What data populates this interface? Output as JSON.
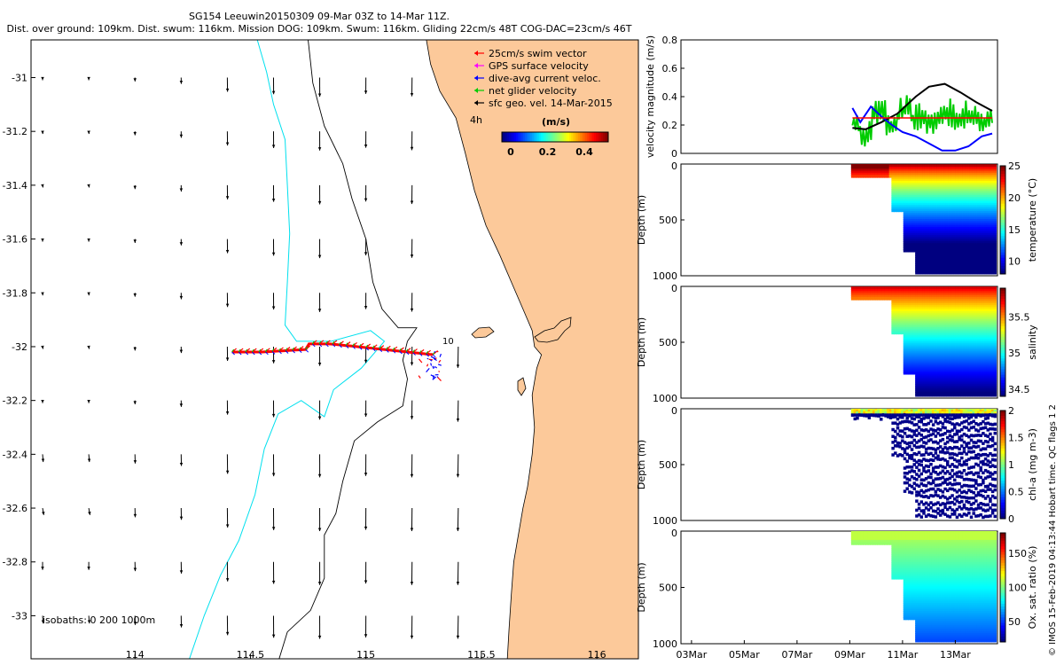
{
  "title": {
    "line1": "SG154 Leeuwin20150309 09-Mar 03Z to 14-Mar 11Z.",
    "line2": "Dist. over ground: 109km. Dist. swum: 116km. Mission DOG: 109km. Swum: 116km. Gliding 22cm/s 48T COG-DAC=23cm/s 46T"
  },
  "map": {
    "xticks": [
      "114",
      "114.5",
      "115",
      "115.5",
      "116"
    ],
    "yticks": [
      "-31",
      "-31.2",
      "-31.4",
      "-31.6",
      "-31.8",
      "-32",
      "-32.2",
      "-32.4",
      "-32.6",
      "-32.8",
      "-33"
    ],
    "legend": [
      {
        "label": "25cm/s swim vector",
        "color": "#ff0000"
      },
      {
        "label": "GPS surface velocity",
        "color": "#ff00ff"
      },
      {
        "label": "dive-avg current veloc.",
        "color": "#0000ff"
      },
      {
        "label": "net glider velocity",
        "color": "#00cc00"
      },
      {
        "label": "sfc geo. vel. 14-Mar-2015",
        "color": "#000000"
      }
    ],
    "colorbar": {
      "label": "(m/s)",
      "ticks": [
        "0",
        "0.2",
        "0.4"
      ]
    },
    "time_label": "4h",
    "dive_label": "10",
    "isobaths_label": "isobaths: 0   200  1000m",
    "land_color": "#fcc99a",
    "isobath_colors": {
      "coast": "#000000",
      "200m": "#000000",
      "1000m": "#00e0ee"
    }
  },
  "chart_data": [
    {
      "type": "line",
      "title": "",
      "ylabel": "velocity magnitude (m/s)",
      "ylim": [
        0,
        0.8
      ],
      "yticks": [
        "0",
        "0.2",
        "0.4",
        "0.6",
        "0.8"
      ],
      "x_dates": [
        "03Mar",
        "05Mar",
        "07Mar",
        "09Mar",
        "11Mar",
        "13Mar"
      ],
      "series": [
        {
          "color": "#000000",
          "x": [
            9.1,
            9.6,
            10.2,
            10.8,
            11.5,
            12.0,
            12.6,
            13.2,
            13.8,
            14.4
          ],
          "y": [
            0.18,
            0.17,
            0.22,
            0.28,
            0.4,
            0.47,
            0.49,
            0.43,
            0.36,
            0.3
          ]
        },
        {
          "color": "#00cc00",
          "x": [
            9.1,
            9.5,
            10.0,
            10.5,
            11.0,
            11.5,
            12.0,
            12.5,
            13.0,
            13.5,
            14.0,
            14.4
          ],
          "y": [
            0.22,
            0.12,
            0.26,
            0.18,
            0.3,
            0.24,
            0.21,
            0.27,
            0.24,
            0.26,
            0.22,
            0.25
          ]
        },
        {
          "color": "#0000ff",
          "x": [
            9.1,
            9.4,
            9.8,
            10.2,
            10.6,
            11.0,
            11.5,
            12.0,
            12.5,
            13.0,
            13.5,
            14.0,
            14.4
          ],
          "y": [
            0.32,
            0.22,
            0.33,
            0.26,
            0.2,
            0.15,
            0.12,
            0.07,
            0.02,
            0.02,
            0.05,
            0.12,
            0.14
          ]
        },
        {
          "color": "#ff0000",
          "x": [
            9.1,
            14.4
          ],
          "y": [
            0.25,
            0.25
          ]
        }
      ]
    },
    {
      "type": "scatter",
      "ylabel": "Depth (m)",
      "yticks": [
        "0",
        "500",
        "1000"
      ],
      "ylim": [
        1000,
        0
      ],
      "colorbar_label": "temperature (°C)",
      "colorbar_ticks": [
        "10",
        "15",
        "20",
        "25"
      ],
      "crange": [
        8,
        25
      ]
    },
    {
      "type": "scatter",
      "ylabel": "Depth (m)",
      "yticks": [
        "0",
        "500",
        "1000"
      ],
      "ylim": [
        1000,
        0
      ],
      "colorbar_label": "salinity",
      "colorbar_ticks": [
        "34.5",
        "35",
        "35.5"
      ],
      "crange": [
        34.4,
        35.9
      ]
    },
    {
      "type": "scatter",
      "ylabel": "Depth (m)",
      "yticks": [
        "0",
        "500",
        "1000"
      ],
      "ylim": [
        1000,
        0
      ],
      "colorbar_label": "chl-a (mg m-3)",
      "colorbar_ticks": [
        "0",
        "0.5",
        "1",
        "1.5",
        "2"
      ],
      "crange": [
        0,
        2
      ]
    },
    {
      "type": "scatter",
      "ylabel": "Depth (m)",
      "yticks": [
        "0",
        "500",
        "1000"
      ],
      "ylim": [
        1000,
        0
      ],
      "colorbar_label": "Ox. sat. ratio (%)",
      "colorbar_ticks": [
        "50",
        "100",
        "150"
      ],
      "crange": [
        20,
        180
      ]
    }
  ],
  "credit": "© IMOS 15-Feb-2019 04:13:44 Hobart time. QC flags 1  2"
}
